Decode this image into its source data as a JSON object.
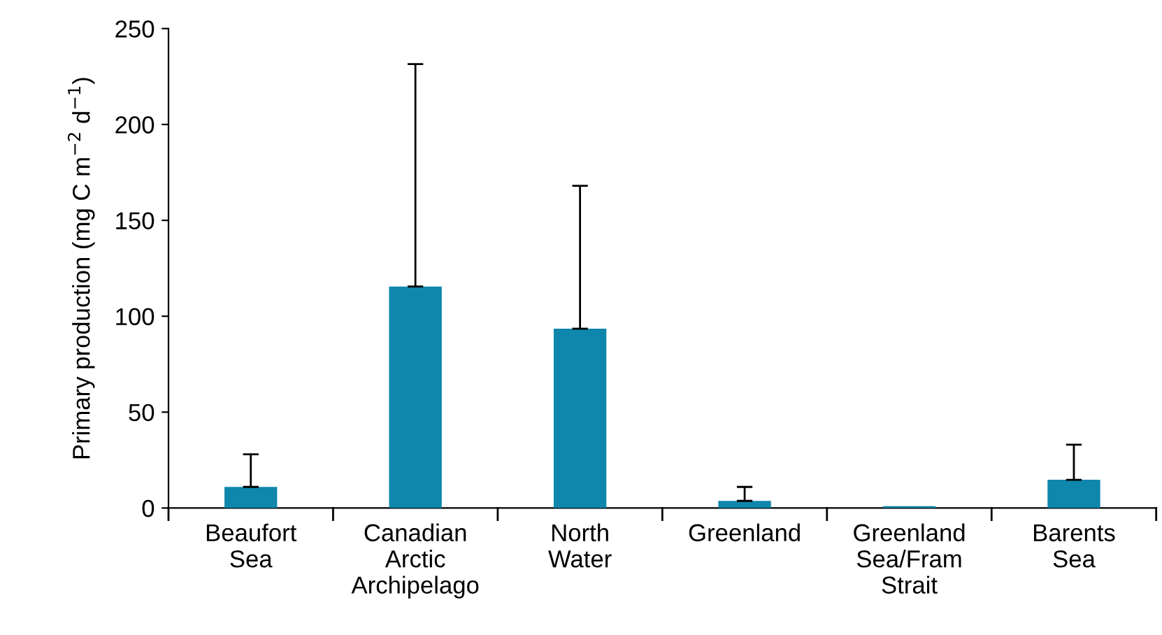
{
  "chart_data": {
    "type": "bar",
    "ylabel": "Primary production (mg C m$^{−2}$ d$^{−1}$)",
    "categories": [
      "Beaufort\nSea",
      "Canadian\nArctic\nArchipelago",
      "North\nWater",
      "Greenland",
      "Greenland\nSea/Fram\nStrait",
      "Barents\nSea"
    ],
    "values": [
      11,
      115.5,
      93.5,
      3.7,
      1,
      14.7
    ],
    "errors": [
      [
        11,
        28
      ],
      [
        115.5,
        231.5
      ],
      [
        93.5,
        168
      ],
      [
        3.7,
        11
      ],
      null,
      [
        14.7,
        33
      ]
    ],
    "color": "#0f86ac",
    "ylim": [
      0,
      250
    ],
    "yticks": [
      0,
      50,
      100,
      150,
      200,
      250
    ],
    "grid": false,
    "legend": false
  }
}
